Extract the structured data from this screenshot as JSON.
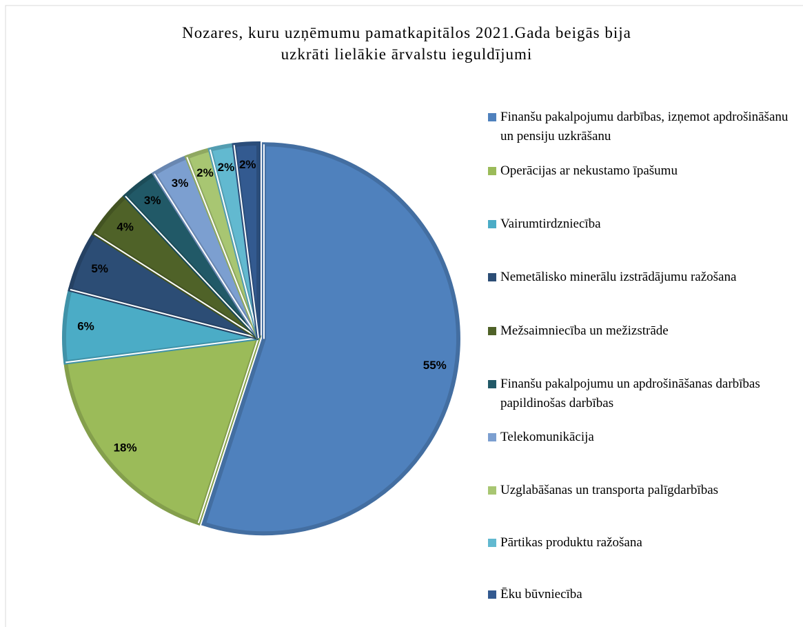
{
  "chart_data": {
    "type": "pie",
    "title": "Nozares, kuru uzņēmumu pamatkapitālos 2021.Gada beigās bija uzkrāti lielākie ārvalstu ieguldījumi",
    "categories": [
      "Finanšu pakalpojumu darbības, izņemot apdrošināšanu un pensiju uzkrāšanu",
      "Operācijas ar nekustamo īpašumu",
      "Vairumtirdzniecība",
      "Nemetālisko minerālu izstrādājumu ražošana",
      "Mežsaimniecība un mežizstrāde",
      "Finanšu pakalpojumu un apdrošināšanas darbības papildinošas darbības",
      "Telekomunikācija",
      "Uzglabāšanas un transporta palīgdarbības",
      "Pārtikas produktu ražošana",
      "Ēku būvniecība"
    ],
    "values": [
      55,
      18,
      6,
      5,
      4,
      3,
      3,
      2,
      2,
      2
    ],
    "value_labels": [
      "55%",
      "18%",
      "6%",
      "5%",
      "4%",
      "3%",
      "3%",
      "2%",
      "2%",
      "2%"
    ],
    "colors": [
      "#4f81bd",
      "#9bbb59",
      "#4bacc6",
      "#2c4d75",
      "#4f6228",
      "#215967",
      "#7c9fd0",
      "#a8c672",
      "#62b9d0",
      "#335a90"
    ],
    "legend": "right"
  }
}
